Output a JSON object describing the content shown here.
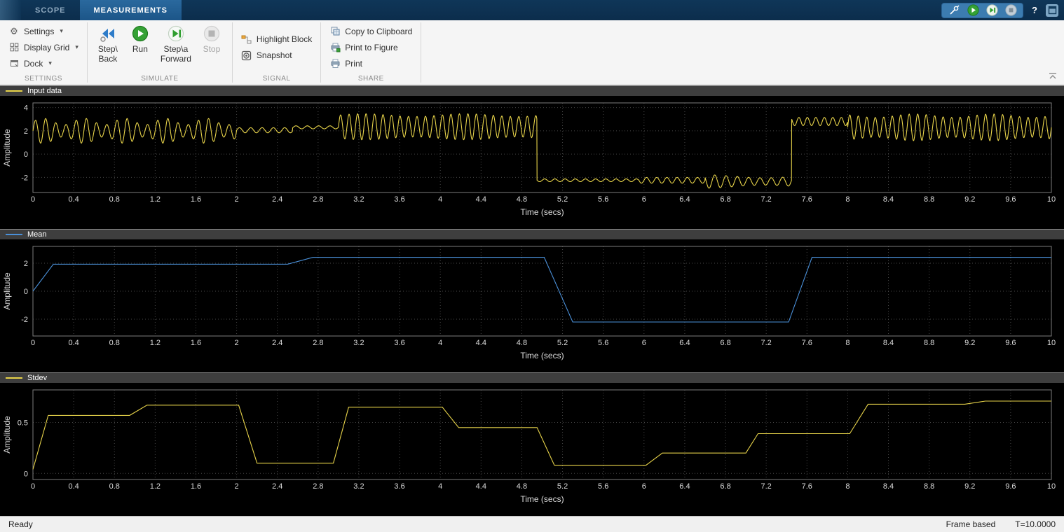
{
  "titlebar": {
    "tabs": [
      {
        "label": "SCOPE",
        "active": false
      },
      {
        "label": "MEASUREMENTS",
        "active": true
      }
    ],
    "icons": [
      "probe-icon",
      "run-icon",
      "step-forward-icon",
      "stop-icon",
      "help-icon",
      "dock-icon"
    ]
  },
  "ribbon": {
    "settings": {
      "label": "SETTINGS",
      "items": [
        {
          "label": "Settings",
          "icon": "gear-icon"
        },
        {
          "label": "Display Grid",
          "icon": "grid-icon"
        },
        {
          "label": "Dock",
          "icon": "dock-icon"
        }
      ]
    },
    "simulate": {
      "label": "SIMULATE",
      "step_back": {
        "line1": "Step\\",
        "line2": "Back",
        "icon": "step-back-icon"
      },
      "run": {
        "label": "Run",
        "icon": "run-icon"
      },
      "step_forward": {
        "line1": "Step\\a",
        "line2": "Forward",
        "icon": "step-forward-icon"
      },
      "stop": {
        "label": "Stop",
        "icon": "stop-icon",
        "disabled": true
      }
    },
    "signal": {
      "label": "SIGNAL",
      "items": [
        {
          "label": "Highlight Block",
          "icon": "highlight-block-icon"
        },
        {
          "label": "Snapshot",
          "icon": "snapshot-icon"
        }
      ]
    },
    "share": {
      "label": "SHARE",
      "items": [
        {
          "label": "Copy to Clipboard",
          "icon": "copy-clipboard-icon"
        },
        {
          "label": "Print to Figure",
          "icon": "print-figure-icon"
        },
        {
          "label": "Print",
          "icon": "print-icon"
        }
      ]
    }
  },
  "statusbar": {
    "ready": "Ready",
    "frame_mode": "Frame based",
    "sim_time": "T=10.0000"
  },
  "colors": {
    "signal_yellow": "#e8d44a",
    "signal_blue": "#4a90d9",
    "plot_bg": "#000000",
    "grid": "#474747",
    "axis_text": "#dcdcdc",
    "titlebar_blue": "#0c2d4c"
  },
  "chart_data": [
    {
      "type": "line",
      "title": "Input data",
      "xlabel": "Time (secs)",
      "ylabel": "Amplitude",
      "xlim": [
        0,
        10
      ],
      "ylim": [
        -3.3,
        4.4
      ],
      "xticks": [
        0,
        0.4,
        0.8,
        1.2,
        1.6,
        2,
        2.4,
        2.8,
        3.2,
        3.6,
        4,
        4.4,
        4.8,
        5.2,
        5.6,
        6,
        6.4,
        6.8,
        7.2,
        7.6,
        8,
        8.4,
        8.8,
        9.2,
        9.6,
        10
      ],
      "yticks": [
        -2,
        0,
        2,
        4
      ],
      "grid": true,
      "legend_position": "top-strip",
      "series": [
        {
          "name": "Input data",
          "color": "#e8d44a",
          "signal_segments": [
            {
              "t": [
                0,
                2.0
              ],
              "mean": 2.0,
              "amp": 0.8,
              "freq": 10,
              "mod_freq": 2.5,
              "mod_depth": 0.35
            },
            {
              "t": [
                2.0,
                2.55
              ],
              "mean": 2.05,
              "amp": 0.22,
              "freq": 9
            },
            {
              "t": [
                2.55,
                3.0
              ],
              "mean": 2.3,
              "amp": 0.13,
              "freq": 9
            },
            {
              "t": [
                3.0,
                4.95
              ],
              "mean": 2.35,
              "amp": 1.0,
              "freq": 12,
              "mod_freq": 1.0,
              "mod_depth": 0.12
            },
            {
              "t": [
                4.95,
                5.95
              ],
              "mean": -2.25,
              "amp": 0.12,
              "freq": 10
            },
            {
              "t": [
                5.95,
                6.6
              ],
              "mean": -2.25,
              "amp": 0.25,
              "freq": 10
            },
            {
              "t": [
                6.6,
                7.45
              ],
              "mean": -2.35,
              "amp": 0.45,
              "freq": 9,
              "mod_freq": 0.8,
              "mod_depth": 0.3
            },
            {
              "t": [
                7.45,
                8.0
              ],
              "mean": 2.8,
              "amp": 0.35,
              "freq": 12
            },
            {
              "t": [
                8.0,
                10.0
              ],
              "mean": 2.3,
              "amp": 1.0,
              "freq": 12,
              "mod_freq": 1.3,
              "mod_depth": 0.15
            }
          ]
        }
      ]
    },
    {
      "type": "line",
      "title": "Mean",
      "xlabel": "Time (secs)",
      "ylabel": "Amplitude",
      "xlim": [
        0,
        10
      ],
      "ylim": [
        -3.2,
        3.2
      ],
      "xticks": [
        0,
        0.4,
        0.8,
        1.2,
        1.6,
        2,
        2.4,
        2.8,
        3.2,
        3.6,
        4,
        4.4,
        4.8,
        5.2,
        5.6,
        6,
        6.4,
        6.8,
        7.2,
        7.6,
        8,
        8.4,
        8.8,
        9.2,
        9.6,
        10
      ],
      "yticks": [
        -2,
        0,
        2
      ],
      "grid": true,
      "legend_position": "top-strip",
      "series": [
        {
          "name": "Mean",
          "color": "#4a90d9",
          "points": [
            [
              0,
              0
            ],
            [
              0.2,
              1.93
            ],
            [
              2.5,
              1.93
            ],
            [
              2.75,
              2.42
            ],
            [
              5.02,
              2.42
            ],
            [
              5.3,
              -2.2
            ],
            [
              7.42,
              -2.2
            ],
            [
              7.65,
              2.42
            ],
            [
              10,
              2.42
            ]
          ]
        }
      ]
    },
    {
      "type": "line",
      "title": "Stdev",
      "xlabel": "Time (secs)",
      "ylabel": "Amplitude",
      "xlim": [
        0,
        10
      ],
      "ylim": [
        -0.06,
        0.82
      ],
      "xticks": [
        0,
        0.4,
        0.8,
        1.2,
        1.6,
        2,
        2.4,
        2.8,
        3.2,
        3.6,
        4,
        4.4,
        4.8,
        5.2,
        5.6,
        6,
        6.4,
        6.8,
        7.2,
        7.6,
        8,
        8.4,
        8.8,
        9.2,
        9.6,
        10
      ],
      "yticks": [
        0,
        0.5
      ],
      "grid": true,
      "legend_position": "top-strip",
      "series": [
        {
          "name": "Stdev",
          "color": "#e8d44a",
          "points": [
            [
              0,
              0.04
            ],
            [
              0.15,
              0.57
            ],
            [
              0.95,
              0.57
            ],
            [
              1.12,
              0.67
            ],
            [
              2.02,
              0.67
            ],
            [
              2.2,
              0.1
            ],
            [
              2.95,
              0.1
            ],
            [
              3.1,
              0.65
            ],
            [
              4.02,
              0.65
            ],
            [
              4.18,
              0.45
            ],
            [
              4.95,
              0.45
            ],
            [
              5.12,
              0.08
            ],
            [
              6.02,
              0.08
            ],
            [
              6.18,
              0.2
            ],
            [
              7.0,
              0.2
            ],
            [
              7.12,
              0.39
            ],
            [
              8.02,
              0.39
            ],
            [
              8.2,
              0.68
            ],
            [
              9.15,
              0.68
            ],
            [
              9.35,
              0.71
            ],
            [
              10,
              0.71
            ]
          ]
        }
      ]
    }
  ]
}
